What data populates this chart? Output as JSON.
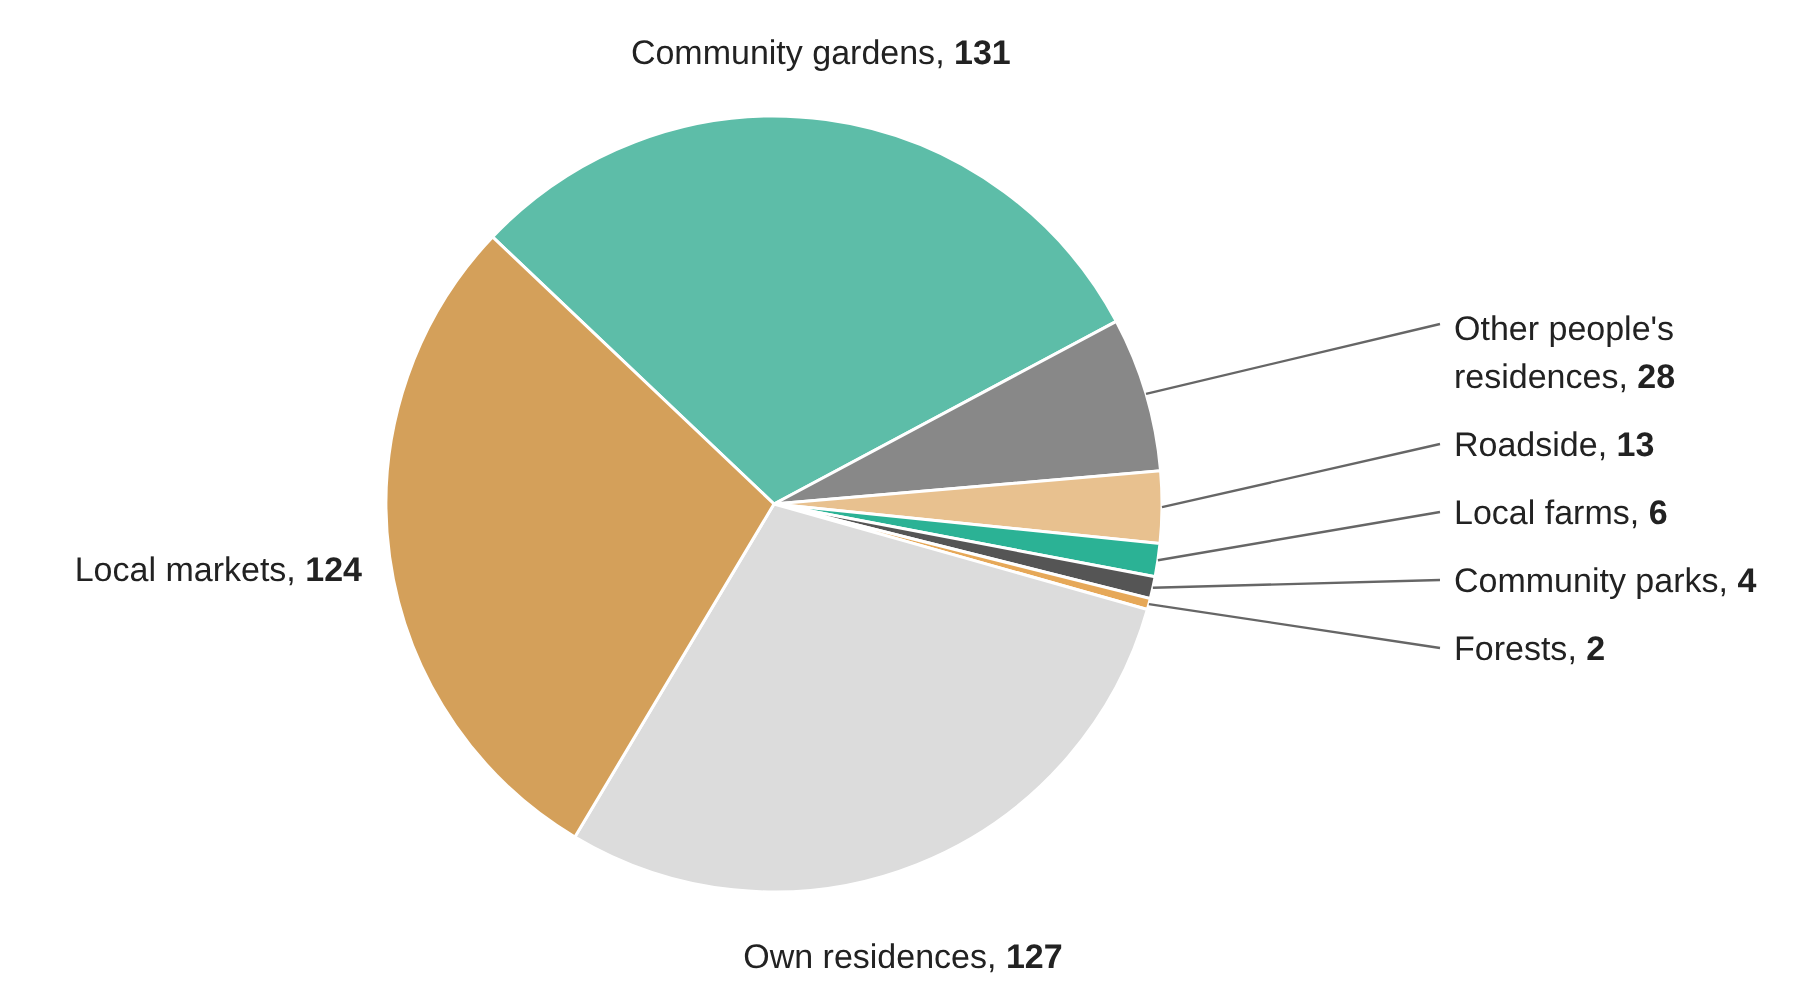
{
  "chart_data": {
    "type": "pie",
    "categories": [
      "Community gardens",
      "Other people's residences",
      "Roadside",
      "Local farms",
      "Community parks",
      "Forests",
      "Own residences",
      "Local markets"
    ],
    "values": [
      131,
      28,
      13,
      6,
      4,
      2,
      127,
      124
    ],
    "colors": [
      "#5dbda8",
      "#888888",
      "#e8c18f",
      "#2bb295",
      "#555555",
      "#e6a858",
      "#dcdcdc",
      "#d4a05a"
    ],
    "value_labels": [
      ", 131",
      ", 28",
      ", 13",
      ", 6",
      ", 4",
      ", 2",
      ", 127",
      ", 124"
    ]
  }
}
